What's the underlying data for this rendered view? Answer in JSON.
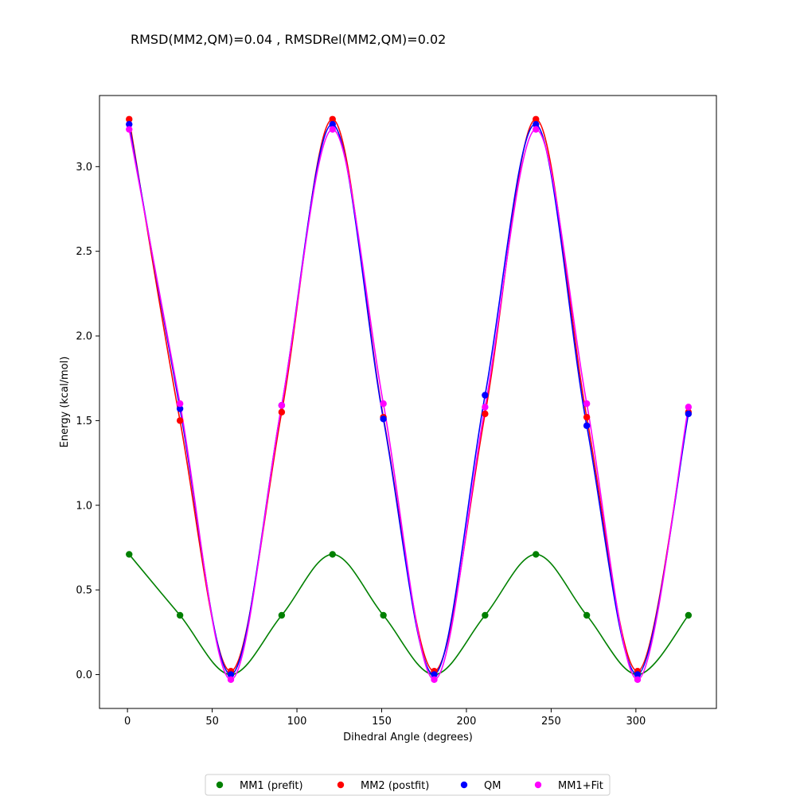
{
  "chart_data": {
    "type": "line",
    "title": "RMSD(MM2,QM)=0.04 , RMSDRel(MM2,QM)=0.02",
    "xlabel": "Dihedral Angle (degrees)",
    "ylabel": "Energy (kcal/mol)",
    "xlim": [
      -16.5,
      347.5
    ],
    "ylim": [
      -0.2,
      3.42
    ],
    "xticks": [
      0,
      50,
      100,
      150,
      200,
      250,
      300
    ],
    "yticks": [
      0.0,
      0.5,
      1.0,
      1.5,
      2.0,
      2.5,
      3.0
    ],
    "xtick_labels": [
      "0",
      "50",
      "100",
      "150",
      "200",
      "250",
      "300"
    ],
    "ytick_labels": [
      "0.0",
      "0.5",
      "1.0",
      "1.5",
      "2.0",
      "2.5",
      "3.0"
    ],
    "x": [
      1,
      31,
      61,
      91,
      121,
      151,
      181,
      211,
      241,
      271,
      301,
      331
    ],
    "grid": false,
    "legend_position": "bottom-center",
    "series": [
      {
        "name": "MM1 (prefit)",
        "color": "#008000",
        "values": [
          0.71,
          0.35,
          0.0,
          0.35,
          0.71,
          0.35,
          0.0,
          0.35,
          0.71,
          0.35,
          0.0,
          0.35
        ]
      },
      {
        "name": "MM2 (postfit)",
        "color": "#ff0000",
        "values": [
          3.28,
          1.5,
          0.02,
          1.55,
          3.28,
          1.52,
          0.02,
          1.54,
          3.28,
          1.52,
          0.02,
          1.55
        ]
      },
      {
        "name": "QM",
        "color": "#0000ff",
        "values": [
          3.25,
          1.57,
          0.0,
          1.59,
          3.25,
          1.51,
          0.0,
          1.65,
          3.25,
          1.47,
          0.0,
          1.54
        ]
      },
      {
        "name": "MM1+Fit",
        "color": "#ff00ff",
        "values": [
          3.22,
          1.6,
          -0.03,
          1.59,
          3.22,
          1.6,
          -0.03,
          1.58,
          3.22,
          1.6,
          -0.03,
          1.58
        ]
      }
    ]
  }
}
